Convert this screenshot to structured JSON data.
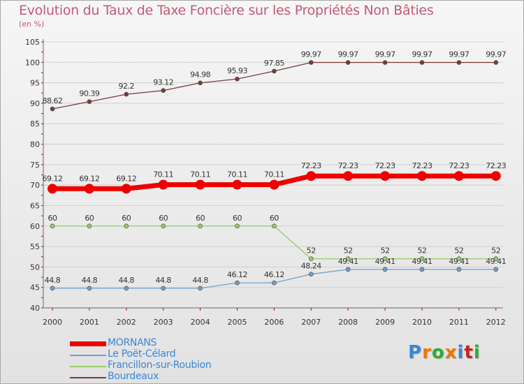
{
  "chart_data": {
    "type": "line",
    "title": "Evolution du Taux de Taxe Foncière sur les Propriétés Non Bâties",
    "unit_label": "(en %)",
    "xlabel": "",
    "ylabel": "",
    "ylim": [
      40,
      105
    ],
    "ytick_labels": [
      "40",
      "45",
      "50",
      "55",
      "60",
      "65",
      "70",
      "75",
      "80",
      "85",
      "90",
      "95",
      "100",
      "105"
    ],
    "categories": [
      "2000",
      "2001",
      "2002",
      "2003",
      "2004",
      "2005",
      "2006",
      "2007",
      "2008",
      "2009",
      "2010",
      "2011",
      "2012"
    ],
    "grid": "horizontal",
    "legend": "bottom-left",
    "series": [
      {
        "name": "MORNANS",
        "color": "#ee0000",
        "values": [
          69.12,
          69.12,
          69.12,
          70.11,
          70.11,
          70.11,
          70.11,
          72.23,
          72.23,
          72.23,
          72.23,
          72.23,
          72.23
        ],
        "labels": [
          "69.12",
          "69.12",
          "69.12",
          "70.11",
          "70.11",
          "70.11",
          "70.11",
          "72.23",
          "72.23",
          "72.23",
          "72.23",
          "72.23",
          "72.23"
        ]
      },
      {
        "name": "Le Poët-Célard",
        "color": "#6f9fc8",
        "values": [
          44.8,
          44.8,
          44.8,
          44.8,
          44.8,
          46.12,
          46.12,
          48.24,
          49.41,
          49.41,
          49.41,
          49.41,
          49.41
        ],
        "labels": [
          "44.8",
          "44.8",
          "44.8",
          "44.8",
          "44.8",
          "46.12",
          "46.12",
          "48.24",
          "49.41",
          "49.41",
          "49.41",
          "49.41",
          "49.41"
        ]
      },
      {
        "name": "Francillon-sur-Roubion",
        "color": "#99cc66",
        "values": [
          60,
          60,
          60,
          60,
          60,
          60,
          60,
          52,
          52,
          52,
          52,
          52,
          52
        ],
        "labels": [
          "60",
          "60",
          "60",
          "60",
          "60",
          "60",
          "60",
          "52",
          "52",
          "52",
          "52",
          "52",
          "52"
        ]
      },
      {
        "name": "Bourdeaux",
        "color": "#7a3a3a",
        "values": [
          88.62,
          90.39,
          92.2,
          93.12,
          94.98,
          95.93,
          97.85,
          99.97,
          99.97,
          99.97,
          99.97,
          99.97,
          99.97
        ],
        "labels": [
          "88.62",
          "90.39",
          "92.2",
          "93.12",
          "94.98",
          "95.93",
          "97.85",
          "99.97",
          "99.97",
          "99.97",
          "99.97",
          "99.97",
          "99.97"
        ]
      }
    ]
  },
  "branding": {
    "logo_text": "Proxiti",
    "letter_colors": [
      "#3a86d6",
      "#ee7700",
      "#33aa33",
      "#ee7700",
      "#3a86d6",
      "#cc2222",
      "#33aa33"
    ]
  }
}
